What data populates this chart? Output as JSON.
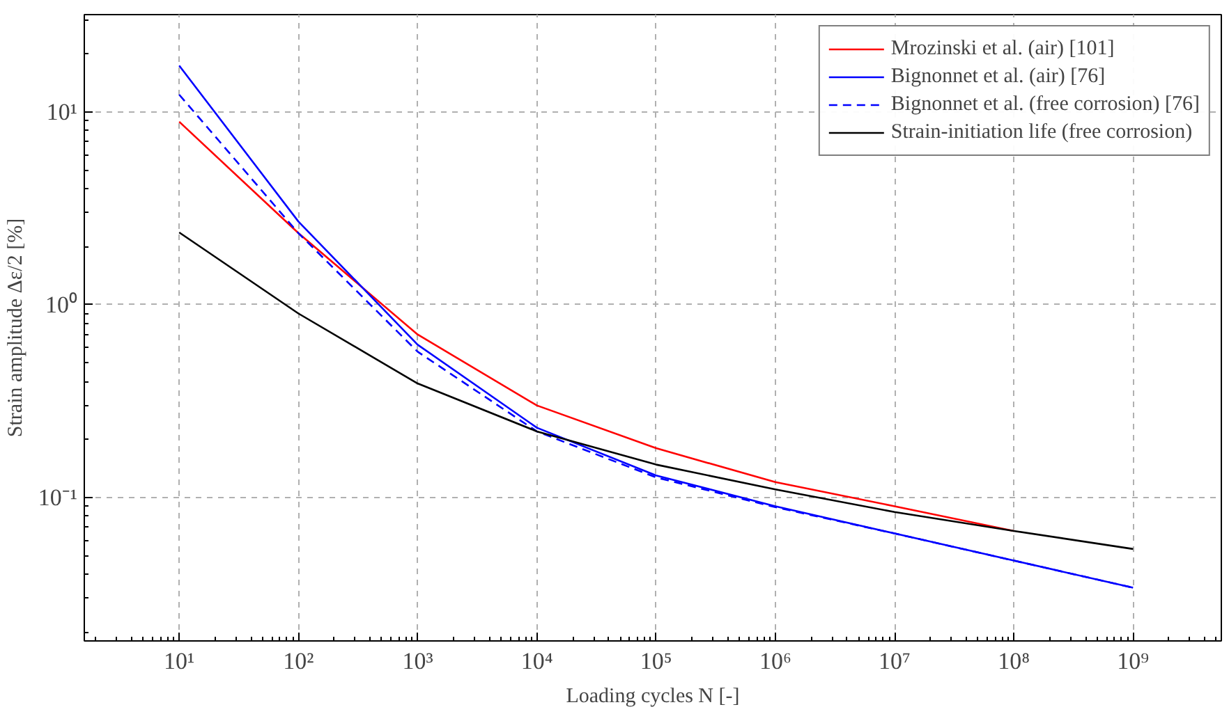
{
  "chart_data": {
    "type": "line",
    "xlabel": "Loading cycles N [-]",
    "ylabel": "Strain amplitude Δε/2 [%]",
    "log": "xy",
    "grid": true,
    "legend": "top right",
    "xlim": [
      1.6,
      5500000000.0
    ],
    "ylim": [
      0.018,
      32
    ],
    "xticks": [
      {
        "value": 10,
        "label": "10¹"
      },
      {
        "value": 100,
        "label": "10²"
      },
      {
        "value": 1000,
        "label": "10³"
      },
      {
        "value": 10000,
        "label": "10⁴"
      },
      {
        "value": 100000,
        "label": "10⁵"
      },
      {
        "value": 1000000,
        "label": "10⁶"
      },
      {
        "value": 10000000,
        "label": "10⁷"
      },
      {
        "value": 100000000,
        "label": "10⁸"
      },
      {
        "value": 1000000000,
        "label": "10⁹"
      }
    ],
    "yticks": [
      {
        "value": 0.1,
        "label": "10⁻¹"
      },
      {
        "value": 1,
        "label": "10⁰"
      },
      {
        "value": 10,
        "label": "10¹"
      }
    ],
    "x": [
      10,
      100,
      1000,
      10000,
      100000,
      1000000,
      10000000,
      100000000,
      1000000000
    ],
    "series": [
      {
        "name": "Mrozinski et al. (air) [101]",
        "color": "#ff0000",
        "line_style": "solid",
        "values": [
          8.9,
          2.35,
          0.7,
          0.3,
          0.18,
          0.12,
          0.09,
          0.067,
          null
        ]
      },
      {
        "name": "Bignonnet et al. (air) [76]",
        "color": "#0000ff",
        "line_style": "solid",
        "values": [
          17.4,
          2.7,
          0.62,
          0.23,
          0.13,
          0.09,
          0.065,
          0.047,
          0.034
        ]
      },
      {
        "name": "Bignonnet et al. (free corrosion) [76]",
        "color": "#0000ff",
        "line_style": "dashed",
        "values": [
          12.3,
          2.35,
          0.57,
          0.22,
          0.127,
          0.089,
          0.065,
          0.047,
          0.034
        ]
      },
      {
        "name": "Strain-initiation life (free corrosion)",
        "color": "#000000",
        "line_style": "solid",
        "values": [
          2.37,
          0.9,
          0.39,
          0.22,
          0.148,
          0.11,
          0.084,
          0.067,
          0.054
        ]
      }
    ]
  }
}
